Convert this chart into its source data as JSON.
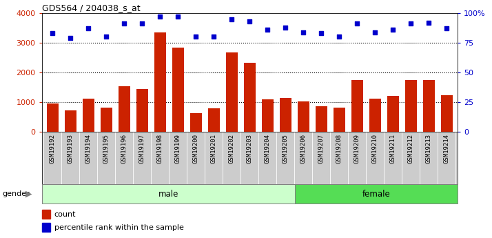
{
  "title": "GDS564 / 204038_s_at",
  "samples": [
    "GSM19192",
    "GSM19193",
    "GSM19194",
    "GSM19195",
    "GSM19196",
    "GSM19197",
    "GSM19198",
    "GSM19199",
    "GSM19200",
    "GSM19201",
    "GSM19202",
    "GSM19203",
    "GSM19204",
    "GSM19205",
    "GSM19206",
    "GSM19207",
    "GSM19208",
    "GSM19209",
    "GSM19210",
    "GSM19211",
    "GSM19212",
    "GSM19213",
    "GSM19214"
  ],
  "counts": [
    960,
    740,
    1120,
    820,
    1540,
    1440,
    3340,
    2850,
    640,
    790,
    2670,
    2320,
    1090,
    1140,
    1020,
    870,
    820,
    1760,
    1120,
    1210,
    1750,
    1750,
    1230
  ],
  "percentiles": [
    83,
    79,
    87,
    80,
    91,
    91,
    97,
    97,
    80,
    80,
    95,
    93,
    86,
    88,
    84,
    83,
    80,
    91,
    84,
    86,
    91,
    92,
    87
  ],
  "gender": [
    "male",
    "male",
    "male",
    "male",
    "male",
    "male",
    "male",
    "male",
    "male",
    "male",
    "male",
    "male",
    "male",
    "male",
    "female",
    "female",
    "female",
    "female",
    "female",
    "female",
    "female",
    "female",
    "female"
  ],
  "male_color": "#ccffcc",
  "female_color": "#55dd55",
  "bar_color": "#cc2200",
  "dot_color": "#0000cc",
  "ylim_left": [
    0,
    4000
  ],
  "ylim_right": [
    0,
    100
  ],
  "yticks_left": [
    0,
    1000,
    2000,
    3000,
    4000
  ],
  "yticks_right": [
    0,
    25,
    50,
    75,
    100
  ],
  "ytick_labels_right": [
    "0",
    "25",
    "50",
    "75",
    "100%"
  ],
  "grid_color": "#000000",
  "xtick_bg": "#cccccc",
  "plot_bg": "#ffffff",
  "xlabel_color": "#cc2200",
  "ylabel_right_color": "#0000cc",
  "gender_label": "gender",
  "legend_count": "count",
  "legend_percentile": "percentile rank within the sample"
}
